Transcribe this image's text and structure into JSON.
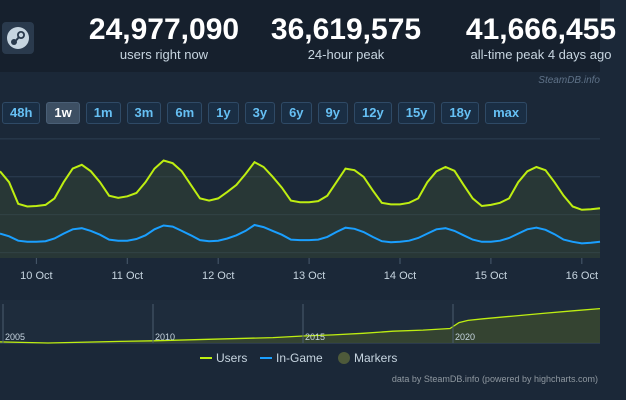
{
  "header": {
    "stats": [
      {
        "value": "24,977,090",
        "label": "users right now"
      },
      {
        "value": "36,619,575",
        "label": "24-hour peak"
      },
      {
        "value": "41,666,455",
        "label": "all-time peak 4 days ago"
      }
    ],
    "logo_icon": "steam-logo-icon"
  },
  "credit_top": "SteamDB.info",
  "ranges": [
    "48h",
    "1w",
    "1m",
    "3m",
    "6m",
    "1y",
    "3y",
    "6y",
    "9y",
    "12y",
    "15y",
    "18y",
    "max"
  ],
  "active_range": "1w",
  "chart_data": [
    {
      "type": "line",
      "x_tick_labels": [
        "10 Oct",
        "11 Oct",
        "12 Oct",
        "13 Oct",
        "14 Oct",
        "15 Oct",
        "16 Oct"
      ],
      "x_range_days": [
        9.6,
        16.2
      ],
      "y_axis_labels": "none shown",
      "grid": "horizontal",
      "legend": "bottom-center",
      "series": [
        {
          "name": "Users",
          "color": "#beee11",
          "area": true,
          "x": [
            9.6,
            9.7,
            9.8,
            9.9,
            10.0,
            10.1,
            10.2,
            10.3,
            10.4,
            10.5,
            10.6,
            10.7,
            10.8,
            10.9,
            11.0,
            11.1,
            11.2,
            11.3,
            11.4,
            11.5,
            11.6,
            11.7,
            11.8,
            11.9,
            12.0,
            12.1,
            12.2,
            12.3,
            12.4,
            12.5,
            12.6,
            12.7,
            12.8,
            12.9,
            13.0,
            13.1,
            13.2,
            13.3,
            13.4,
            13.5,
            13.6,
            13.7,
            13.8,
            13.9,
            14.0,
            14.1,
            14.2,
            14.3,
            14.4,
            14.5,
            14.6,
            14.7,
            14.8,
            14.9,
            15.0,
            15.1,
            15.2,
            15.3,
            15.4,
            15.5,
            15.6,
            15.7,
            15.8,
            15.9,
            16.0,
            16.1,
            16.2
          ],
          "y": [
            34,
            32,
            28,
            27.5,
            27.6,
            27.8,
            29,
            32,
            34.5,
            35.2,
            34,
            32,
            29.5,
            29.1,
            29.4,
            30,
            32,
            34.5,
            36,
            35.5,
            34,
            31.5,
            29,
            28.6,
            29,
            30.2,
            31.5,
            33.5,
            35.7,
            34.8,
            33,
            31,
            28.6,
            28.3,
            28.3,
            28.5,
            29.5,
            32,
            34.5,
            34.2,
            33,
            30.5,
            28.2,
            27.9,
            27.9,
            28.2,
            29,
            32,
            34,
            34.8,
            34.1,
            31.5,
            29,
            27.6,
            27.8,
            28.2,
            29,
            32,
            34,
            34.8,
            34.2,
            32,
            29.5,
            27.5,
            26.9,
            27,
            27.2
          ]
        },
        {
          "name": "In-Game",
          "color": "#1a9fff",
          "area": false,
          "x": [
            9.6,
            9.7,
            9.8,
            9.9,
            10.0,
            10.1,
            10.2,
            10.3,
            10.4,
            10.5,
            10.6,
            10.7,
            10.8,
            10.9,
            11.0,
            11.1,
            11.2,
            11.3,
            11.4,
            11.5,
            11.6,
            11.7,
            11.8,
            11.9,
            12.0,
            12.1,
            12.2,
            12.3,
            12.4,
            12.5,
            12.6,
            12.7,
            12.8,
            12.9,
            13.0,
            13.1,
            13.2,
            13.3,
            13.4,
            13.5,
            13.6,
            13.7,
            13.8,
            13.9,
            14.0,
            14.1,
            14.2,
            14.3,
            14.4,
            14.5,
            14.6,
            14.7,
            14.8,
            14.9,
            15.0,
            15.1,
            15.2,
            15.3,
            15.4,
            15.5,
            15.6,
            15.7,
            15.8,
            15.9,
            16.0,
            16.1,
            16.2
          ],
          "y": [
            22.5,
            22,
            21.2,
            21,
            21,
            21.1,
            21.6,
            22.5,
            23.3,
            23.5,
            23,
            22.3,
            21.4,
            21.2,
            21.2,
            21.5,
            22.2,
            23.3,
            24,
            23.8,
            23,
            22.2,
            21.3,
            21.1,
            21.2,
            21.6,
            22.2,
            23,
            24.1,
            23.7,
            23,
            22.3,
            21.4,
            21.3,
            21.3,
            21.4,
            21.9,
            22.8,
            23.6,
            23.4,
            22.8,
            21.9,
            21.1,
            20.9,
            21,
            21.2,
            21.7,
            22.5,
            23.3,
            23.5,
            23,
            22.2,
            21.4,
            21,
            21,
            21.2,
            21.7,
            22.5,
            23.3,
            23.6,
            23.2,
            22.4,
            21.4,
            21,
            20.7,
            20.8,
            21
          ]
        }
      ]
    },
    {
      "type": "area",
      "role": "navigator",
      "x_tick_labels": [
        "2005",
        "2010",
        "2015",
        "2020"
      ],
      "x_range_years": [
        2004.9,
        2024.9
      ],
      "series": [
        {
          "name": "Users",
          "color": "#beee11",
          "x": [
            2004.9,
            2006.5,
            2008.9,
            2010,
            2012,
            2014,
            2015,
            2016,
            2017,
            2018,
            2019,
            2019.9,
            2020.2,
            2020.5,
            2021,
            2022,
            2023,
            2024,
            2024.9
          ],
          "y": [
            1,
            0,
            1.5,
            2,
            3.5,
            5,
            6.5,
            7.5,
            9,
            11,
            12,
            13.5,
            19,
            21,
            22.5,
            25,
            27.5,
            30,
            32
          ]
        }
      ]
    }
  ],
  "legend": [
    {
      "label": "Users",
      "color": "#beee11",
      "symbol": "line"
    },
    {
      "label": "In-Game",
      "color": "#1a9fff",
      "symbol": "line"
    },
    {
      "label": "Markers",
      "color": "#4e5a3a",
      "symbol": "circle"
    }
  ],
  "credit_bottom": "data by SteamDB.info (powered by highcharts.com)"
}
